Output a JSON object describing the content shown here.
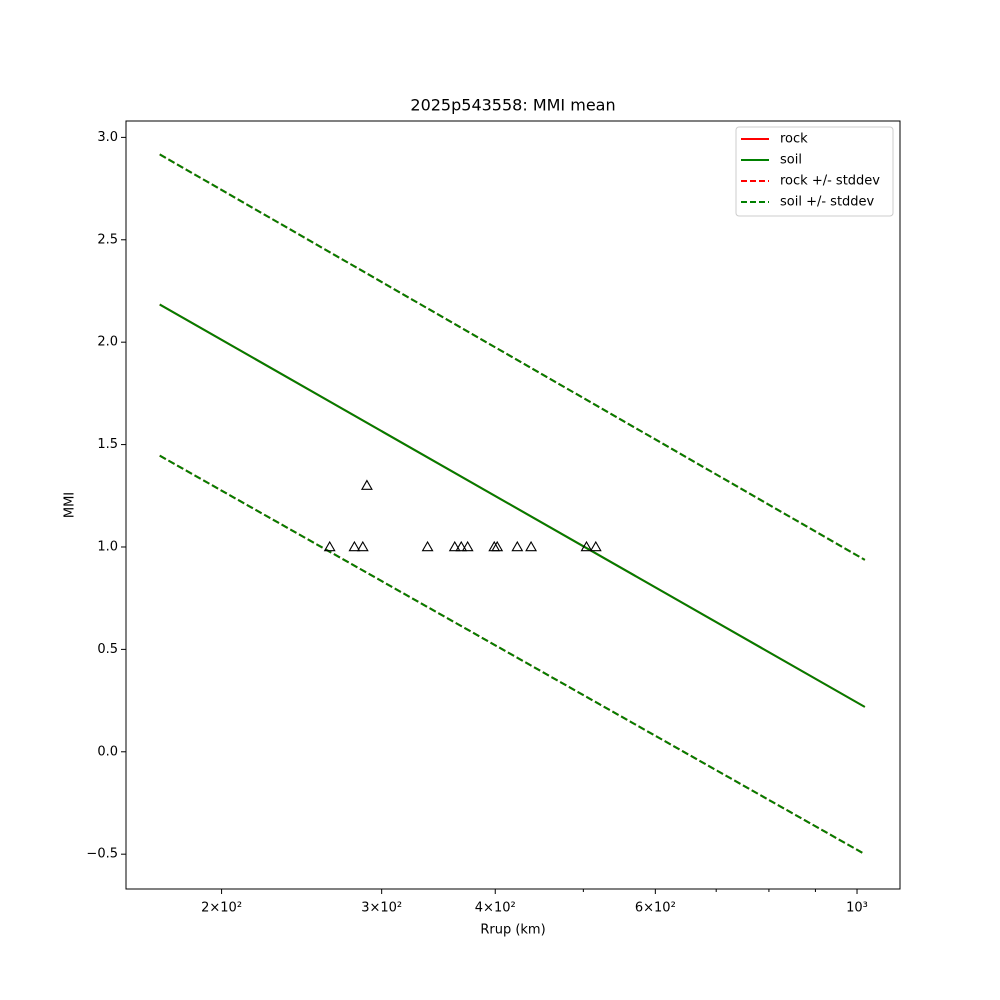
{
  "chart_data": {
    "type": "line",
    "title": "2025p543558: MMI mean",
    "x_label": "Rrup (km)",
    "y_label": "MMI",
    "xscale": "log",
    "xlim": [
      157,
      1115
    ],
    "ylim": [
      -0.67,
      3.08
    ],
    "xticks": [
      {
        "value": 200,
        "label": "2×10²"
      },
      {
        "value": 300,
        "label": "3×10²"
      },
      {
        "value": 400,
        "label": "4×10²"
      },
      {
        "value": 600,
        "label": "6×10²"
      },
      {
        "value": 1000,
        "label": "10³"
      }
    ],
    "xminorticks": [
      500,
      700,
      800,
      900
    ],
    "yticks": [
      {
        "value": -0.5,
        "label": "−0.5"
      },
      {
        "value": 0,
        "label": "0.0"
      },
      0.5,
      {
        "value": 1,
        "label": "1.0"
      },
      1.5,
      {
        "value": 2,
        "label": "2.0"
      },
      2.5,
      {
        "value": 3,
        "label": "3.0"
      }
    ],
    "legend": "upper right",
    "x": [
      171,
      1020
    ],
    "series": [
      {
        "name": "rock",
        "color": "#ff0000",
        "dash": false,
        "values": [
          2.184,
          0.219
        ]
      },
      {
        "name": "soil",
        "color": "#008000",
        "dash": false,
        "values": [
          2.184,
          0.219
        ]
      },
      {
        "name": "rock +/- stddev",
        "color": "#ff0000",
        "dash": true,
        "values": [
          2.917,
          0.937
        ],
        "values2": [
          1.446,
          -0.5
        ]
      },
      {
        "name": "soil +/- stddev",
        "color": "#008000",
        "dash": true,
        "values": [
          2.917,
          0.937
        ],
        "values2": [
          1.446,
          -0.5
        ]
      }
    ],
    "observations": {
      "color": "#000000",
      "x": [
        263,
        280,
        286,
        289,
        337,
        361,
        367,
        373,
        399,
        402,
        423,
        438,
        504,
        516
      ],
      "values": [
        1,
        1,
        1,
        1.3,
        1,
        1,
        1,
        1,
        1,
        1,
        1,
        1,
        1,
        1
      ]
    }
  }
}
